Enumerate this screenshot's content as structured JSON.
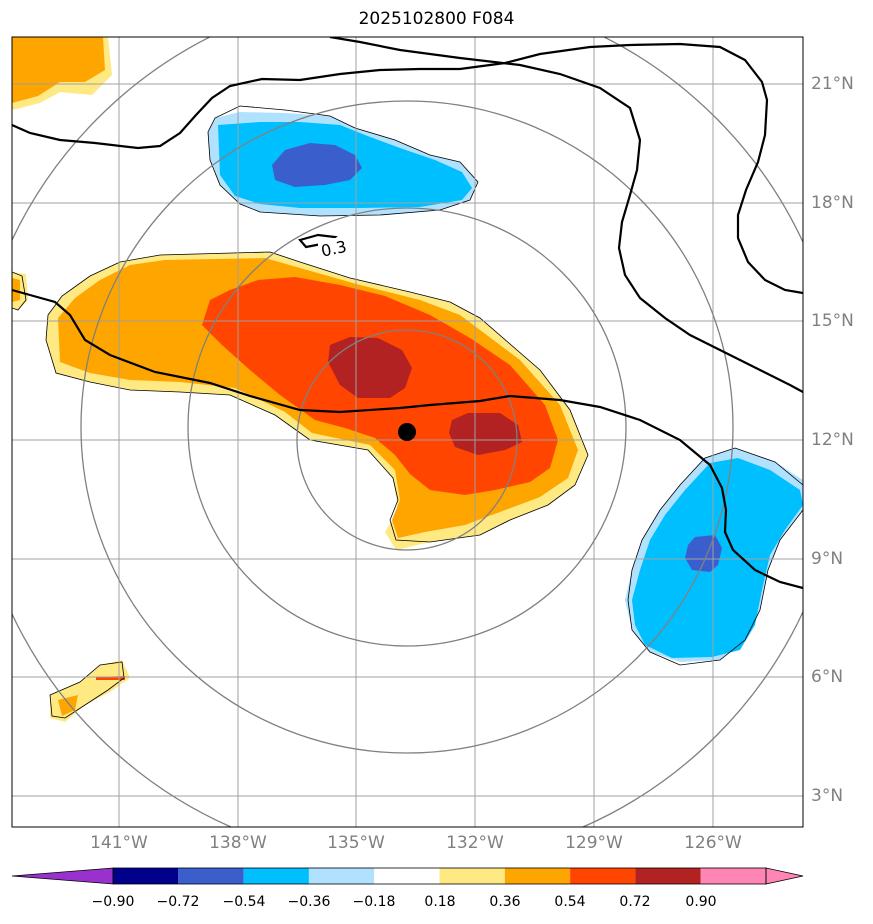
{
  "title": "2025102800 F084",
  "latitude_labels": [
    "21°N",
    "18°N",
    "15°N",
    "12°N",
    "9°N",
    "6°N",
    "3°N"
  ],
  "longitude_labels": [
    "141°W",
    "138°W",
    "135°W",
    "132°W",
    "129°W",
    "126°W"
  ],
  "contour_label": "0.3",
  "colorbar": {
    "ticks": [
      "−0.90",
      "−0.72",
      "−0.54",
      "−0.36",
      "−0.18",
      "0.18",
      "0.36",
      "0.54",
      "0.72",
      "0.90"
    ],
    "colors": [
      "#9932cc",
      "#00008b",
      "#3a5fcd",
      "#00bfff",
      "#b0e2ff",
      "#ffffff",
      "#ffe983",
      "#ffa500",
      "#ff4500",
      "#b22222",
      "#ff86b4"
    ]
  },
  "colors": {
    "grid": "#a0a0a0",
    "range_rings": "#808080",
    "contour": "#000000",
    "center_marker": "#000000"
  }
}
